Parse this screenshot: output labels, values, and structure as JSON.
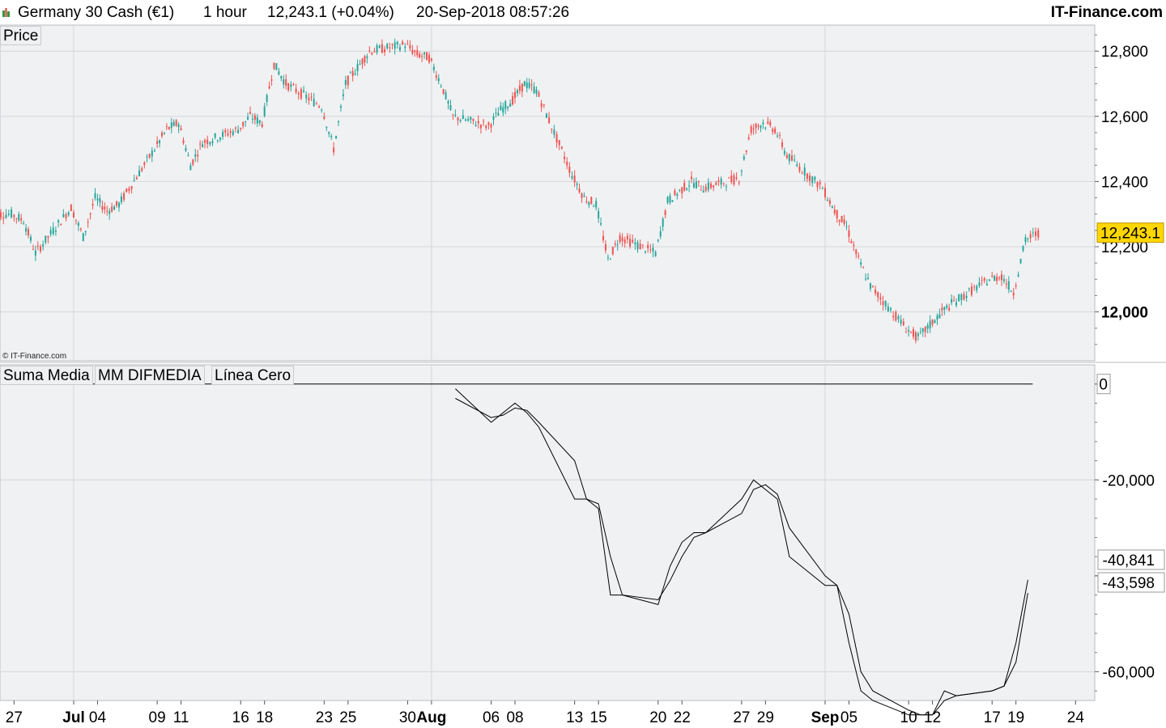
{
  "header": {
    "instrument": "Germany 30 Cash (€1)",
    "timeframe": "1 hour",
    "quote": "12,243.1 (+0.04%)",
    "datetime": "20-Sep-2018 08:57:26",
    "site": "IT-Finance.com"
  },
  "price_panel": {
    "legend": "Price",
    "copyright": "© IT-Finance.com",
    "current_price": "12,243.1"
  },
  "indicator_panel": {
    "legends": [
      "Suma Media",
      "MM DIFMEDIA",
      "Línea Cero"
    ],
    "value_tags": [
      "-40,841",
      "-43,598"
    ]
  },
  "colors": {
    "up": "#26a69a",
    "down": "#ef5350",
    "panel_bg": "#f0f1f3",
    "grid": "#d4d6d9",
    "price_tag": "#ffd700"
  },
  "chart_data": [
    {
      "type": "candlestick",
      "title": "Germany 30 Cash (€1)",
      "timeframe": "1 hour",
      "y_ticks": [
        "12,000",
        "12,200",
        "12,400",
        "12,600",
        "12,800"
      ],
      "ylim": [
        11850,
        12880
      ],
      "x_ticks": [
        "27",
        "Jul",
        "04",
        "09",
        "11",
        "16",
        "18",
        "23",
        "25",
        "30",
        "Aug",
        "06",
        "08",
        "13",
        "15",
        "20",
        "22",
        "27",
        "29",
        "Sep",
        "05",
        "10",
        "12",
        "17",
        "19",
        "24"
      ],
      "grid": true,
      "last_price": 12243.1,
      "series": [
        {
          "name": "Price",
          "x": [
            "2018-06-25",
            "2018-06-27",
            "2018-06-28",
            "2018-06-29",
            "2018-07-02",
            "2018-07-03",
            "2018-07-04",
            "2018-07-05",
            "2018-07-06",
            "2018-07-09",
            "2018-07-10",
            "2018-07-11",
            "2018-07-12",
            "2018-07-13",
            "2018-07-16",
            "2018-07-17",
            "2018-07-18",
            "2018-07-19",
            "2018-07-20",
            "2018-07-23",
            "2018-07-24",
            "2018-07-25",
            "2018-07-26",
            "2018-07-27",
            "2018-07-30",
            "2018-07-31",
            "2018-08-01",
            "2018-08-02",
            "2018-08-03",
            "2018-08-06",
            "2018-08-07",
            "2018-08-08",
            "2018-08-09",
            "2018-08-10",
            "2018-08-13",
            "2018-08-14",
            "2018-08-15",
            "2018-08-16",
            "2018-08-17",
            "2018-08-20",
            "2018-08-21",
            "2018-08-22",
            "2018-08-23",
            "2018-08-24",
            "2018-08-27",
            "2018-08-28",
            "2018-08-29",
            "2018-08-30",
            "2018-08-31",
            "2018-09-03",
            "2018-09-04",
            "2018-09-05",
            "2018-09-06",
            "2018-09-07",
            "2018-09-10",
            "2018-09-11",
            "2018-09-12",
            "2018-09-13",
            "2018-09-14",
            "2018-09-17",
            "2018-09-18",
            "2018-09-19",
            "2018-09-20"
          ],
          "close": [
            12300,
            12280,
            12180,
            12320,
            12230,
            12350,
            12310,
            12330,
            12500,
            12560,
            12580,
            12450,
            12520,
            12560,
            12600,
            12580,
            12760,
            12700,
            12630,
            12500,
            12700,
            12750,
            12800,
            12820,
            12790,
            12780,
            12700,
            12600,
            12570,
            12620,
            12650,
            12700,
            12680,
            12420,
            12350,
            12330,
            12160,
            12230,
            12180,
            12340,
            12370,
            12400,
            12380,
            12410,
            12560,
            12580,
            12560,
            12480,
            12380,
            12310,
            12260,
            12160,
            12080,
            11950,
            11920,
            11960,
            12000,
            12030,
            12100,
            12110,
            12060,
            12220,
            12243
          ]
        }
      ]
    },
    {
      "type": "line",
      "ylim": [
        -66000,
        4000
      ],
      "y_ticks": [
        "0",
        "-20,000",
        "-60,000"
      ],
      "grid": true,
      "series": [
        {
          "name": "Suma Media",
          "x": [
            "2018-08-03",
            "2018-08-06",
            "2018-08-07",
            "2018-08-08",
            "2018-08-09",
            "2018-08-10",
            "2018-08-13",
            "2018-08-14",
            "2018-08-15",
            "2018-08-16",
            "2018-08-17",
            "2018-08-20",
            "2018-08-21",
            "2018-08-22",
            "2018-08-23",
            "2018-08-24",
            "2018-08-27",
            "2018-08-28",
            "2018-08-29",
            "2018-08-30",
            "2018-08-31",
            "2018-09-03",
            "2018-09-04",
            "2018-09-05",
            "2018-09-06",
            "2018-09-07",
            "2018-09-10",
            "2018-09-11",
            "2018-09-12",
            "2018-09-13",
            "2018-09-14",
            "2018-09-17",
            "2018-09-18",
            "2018-09-19",
            "2018-09-20"
          ],
          "values": [
            -1000,
            -8000,
            -6000,
            -4000,
            -6000,
            -9000,
            -24000,
            -24000,
            -26000,
            -44000,
            -44000,
            -46000,
            -38000,
            -33000,
            -31000,
            -31000,
            -24000,
            -20000,
            -22000,
            -24000,
            -36000,
            -42000,
            -42000,
            -54000,
            -64000,
            -66000,
            -69000,
            -69000,
            -69000,
            -64000,
            -65000,
            -64000,
            -63000,
            -54000,
            -40841
          ]
        },
        {
          "name": "MM DIFMEDIA",
          "x": [
            "2018-08-03",
            "2018-08-06",
            "2018-08-07",
            "2018-08-08",
            "2018-08-09",
            "2018-08-10",
            "2018-08-13",
            "2018-08-14",
            "2018-08-15",
            "2018-08-16",
            "2018-08-17",
            "2018-08-20",
            "2018-08-21",
            "2018-08-22",
            "2018-08-23",
            "2018-08-24",
            "2018-08-27",
            "2018-08-28",
            "2018-08-29",
            "2018-08-30",
            "2018-08-31",
            "2018-09-03",
            "2018-09-04",
            "2018-09-05",
            "2018-09-06",
            "2018-09-07",
            "2018-09-10",
            "2018-09-11",
            "2018-09-12",
            "2018-09-13",
            "2018-09-14",
            "2018-09-17",
            "2018-09-18",
            "2018-09-19",
            "2018-09-20"
          ],
          "values": [
            -3000,
            -7000,
            -6500,
            -5000,
            -5500,
            -8000,
            -16000,
            -24000,
            -25000,
            -36000,
            -44000,
            -45000,
            -41000,
            -36000,
            -32000,
            -31000,
            -27000,
            -22000,
            -21000,
            -23000,
            -30000,
            -40000,
            -42000,
            -48000,
            -60000,
            -64000,
            -68000,
            -69000,
            -69000,
            -66000,
            -65000,
            -64000,
            -63000,
            -58000,
            -43598
          ]
        },
        {
          "name": "Línea Cero",
          "x": [
            "2018-06-25",
            "2018-09-20"
          ],
          "values": [
            0,
            0
          ]
        }
      ]
    }
  ]
}
